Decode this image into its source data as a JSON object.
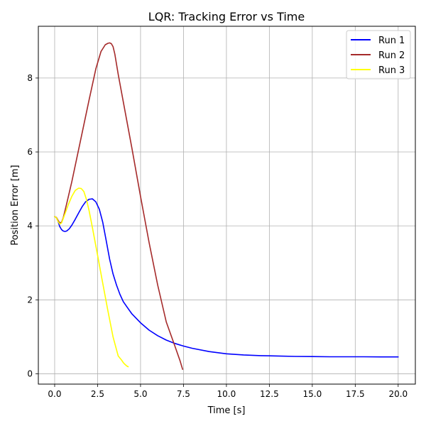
{
  "chart_data": {
    "type": "line",
    "title": "LQR: Tracking Error vs Time",
    "xlabel": "Time [s]",
    "ylabel": "Position Error [m]",
    "xlim": [
      -0.95,
      21.0
    ],
    "ylim": [
      -0.28,
      9.4
    ],
    "xticks": [
      0,
      2.5,
      5,
      7.5,
      10,
      12.5,
      15,
      17.5,
      20
    ],
    "xtick_labels": [
      "0.0",
      "2.5",
      "5.0",
      "7.5",
      "10.0",
      "12.5",
      "15.0",
      "17.5",
      "20.0"
    ],
    "yticks": [
      0,
      2,
      4,
      6,
      8
    ],
    "ytick_labels": [
      "0",
      "2",
      "4",
      "6",
      "8"
    ],
    "grid": true,
    "legend_position": "top-right",
    "series": [
      {
        "name": "Run 1",
        "color": "#0000ff",
        "x": [
          0,
          0.1,
          0.2,
          0.3,
          0.4,
          0.5,
          0.6,
          0.7,
          0.85,
          1.0,
          1.2,
          1.4,
          1.6,
          1.8,
          2.0,
          2.2,
          2.4,
          2.6,
          2.8,
          3.0,
          3.2,
          3.4,
          3.6,
          3.8,
          4.0,
          4.25,
          4.5,
          5.0,
          5.5,
          6.0,
          6.5,
          7.0,
          7.5,
          8.0,
          9.0,
          10.0,
          11.0,
          12.0,
          13.0,
          14.0,
          15.0,
          16.0,
          17.0,
          18.0,
          19.0,
          20.0
        ],
        "y": [
          4.25,
          4.22,
          4.12,
          3.98,
          3.9,
          3.86,
          3.85,
          3.86,
          3.92,
          4.02,
          4.18,
          4.35,
          4.52,
          4.65,
          4.72,
          4.73,
          4.65,
          4.45,
          4.1,
          3.6,
          3.1,
          2.7,
          2.4,
          2.15,
          1.95,
          1.78,
          1.62,
          1.38,
          1.18,
          1.03,
          0.91,
          0.82,
          0.75,
          0.69,
          0.6,
          0.54,
          0.51,
          0.49,
          0.48,
          0.47,
          0.465,
          0.46,
          0.46,
          0.46,
          0.455,
          0.455
        ]
      },
      {
        "name": "Run 2",
        "color": "#a52a2a",
        "x": [
          0,
          0.1,
          0.2,
          0.3,
          0.4,
          0.5,
          0.7,
          1.0,
          1.5,
          2.0,
          2.4,
          2.7,
          2.95,
          3.1,
          3.2,
          3.3,
          3.4,
          3.5,
          3.7,
          4.0,
          4.5,
          5.0,
          5.5,
          6.0,
          6.5,
          7.0,
          7.3,
          7.45
        ],
        "y": [
          4.25,
          4.23,
          4.15,
          4.08,
          4.1,
          4.22,
          4.6,
          5.2,
          6.3,
          7.4,
          8.25,
          8.72,
          8.9,
          8.94,
          8.95,
          8.93,
          8.85,
          8.65,
          8.1,
          7.35,
          6.1,
          4.8,
          3.55,
          2.4,
          1.4,
          0.75,
          0.35,
          0.12
        ]
      },
      {
        "name": "Run 3",
        "color": "#ffff00",
        "x": [
          0,
          0.1,
          0.2,
          0.3,
          0.4,
          0.5,
          0.6,
          0.8,
          1.0,
          1.2,
          1.4,
          1.55,
          1.7,
          1.85,
          2.0,
          2.2,
          2.5,
          2.8,
          3.1,
          3.4,
          3.7,
          3.9,
          4.0,
          4.1,
          4.2,
          4.28
        ],
        "y": [
          4.25,
          4.22,
          4.12,
          4.05,
          4.08,
          4.2,
          4.33,
          4.58,
          4.8,
          4.96,
          5.02,
          5.01,
          4.93,
          4.72,
          4.42,
          3.95,
          3.2,
          2.45,
          1.7,
          1.0,
          0.48,
          0.37,
          0.3,
          0.25,
          0.21,
          0.19
        ]
      }
    ]
  }
}
